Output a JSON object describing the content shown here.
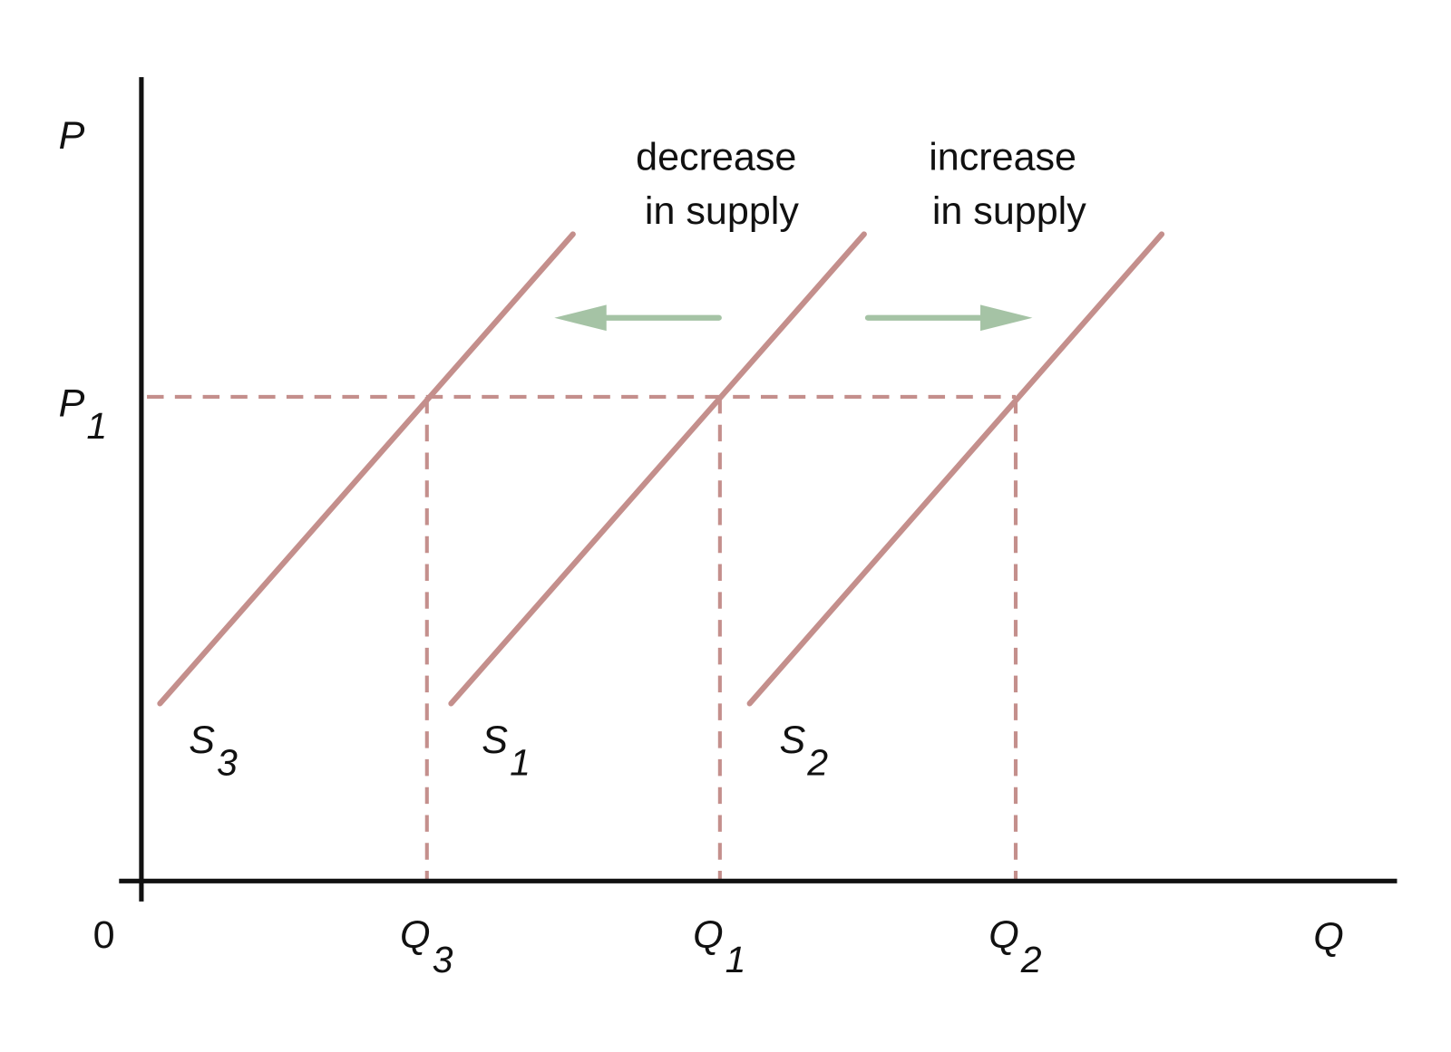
{
  "axes": {
    "price": "P",
    "quantity": "Q",
    "origin": "0"
  },
  "price_level": {
    "letter": "P",
    "sub": "1"
  },
  "quantities": [
    {
      "letter": "Q",
      "sub": "3"
    },
    {
      "letter": "Q",
      "sub": "1"
    },
    {
      "letter": "Q",
      "sub": "2"
    }
  ],
  "supply_curves": [
    {
      "letter": "S",
      "sub": "3"
    },
    {
      "letter": "S",
      "sub": "1"
    },
    {
      "letter": "S",
      "sub": "2"
    }
  ],
  "annotations": [
    {
      "lines": [
        "decrease",
        "in supply"
      ]
    },
    {
      "lines": [
        "increase",
        "in supply"
      ]
    }
  ]
}
